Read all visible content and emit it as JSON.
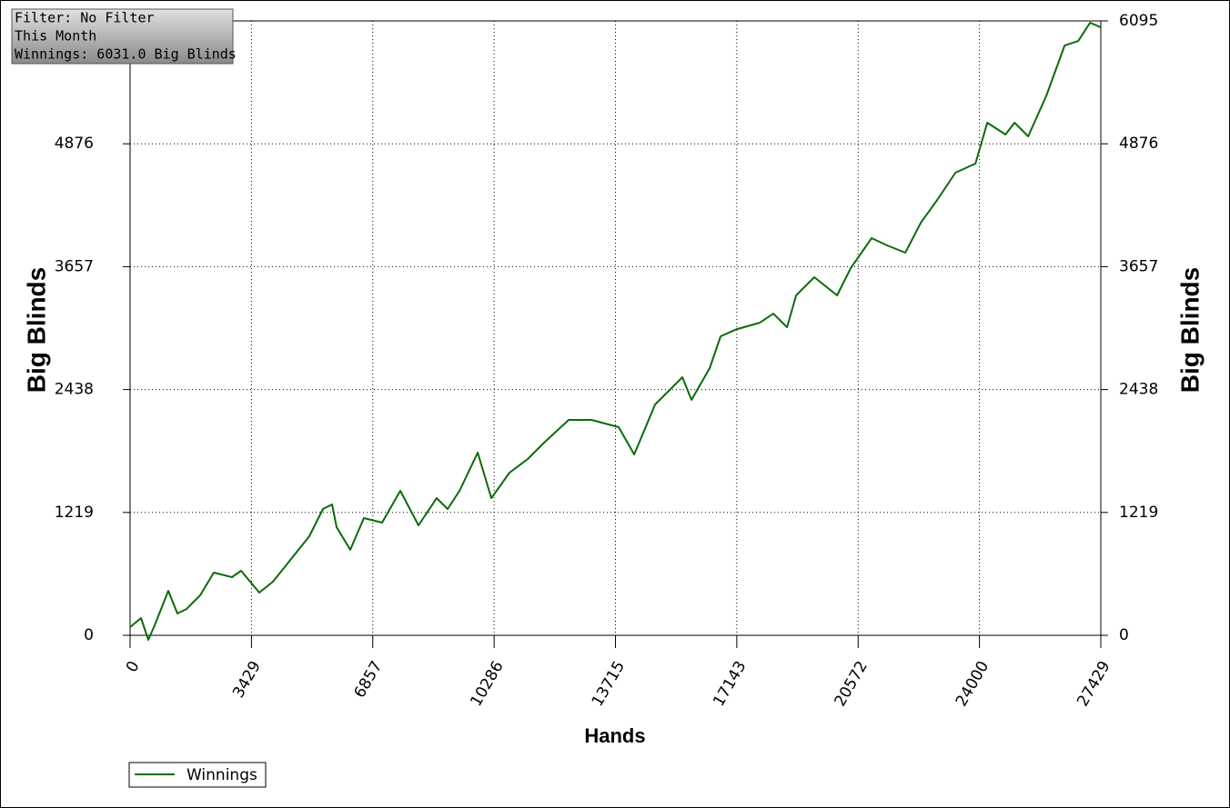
{
  "chart_data": {
    "type": "line",
    "annotations": [
      "Filter: No Filter",
      "This Month",
      "Winnings: 6031.0 Big Blinds"
    ],
    "x_label": "Hands",
    "y_label": "Big Blinds",
    "x": [
      0,
      309,
      514,
      694,
      1080,
      1337,
      1594,
      1980,
      2365,
      2879,
      3136,
      3651,
      4036,
      4551,
      5065,
      5451,
      5708,
      5836,
      6222,
      6607,
      7122,
      7636,
      8150,
      8664,
      8973,
      9308,
      9822,
      10209,
      10723,
      11237,
      11750,
      12393,
      13035,
      13806,
      14243,
      14835,
      15606,
      15863,
      16377,
      16686,
      17149,
      17792,
      18178,
      18563,
      18820,
      19334,
      19977,
      20363,
      20954,
      21391,
      21905,
      22343,
      22806,
      23320,
      23886,
      24220,
      24734,
      24991,
      25377,
      25891,
      26405,
      26791,
      27125,
      27429
    ],
    "series": [
      {
        "name": "Winnings",
        "color": "#0b6b0b",
        "values": [
          81,
          171,
          -45,
          99,
          442,
          216,
          261,
          397,
          622,
          577,
          640,
          424,
          532,
          757,
          983,
          1253,
          1298,
          1073,
          848,
          1163,
          1118,
          1434,
          1091,
          1361,
          1253,
          1434,
          1812,
          1361,
          1614,
          1749,
          1929,
          2137,
          2137,
          2065,
          1794,
          2290,
          2560,
          2335,
          2651,
          2966,
          3038,
          3101,
          3191,
          3056,
          3372,
          3552,
          3372,
          3642,
          3940,
          3868,
          3796,
          4093,
          4319,
          4589,
          4679,
          5085,
          4968,
          5085,
          4950,
          5355,
          5851,
          5896,
          6077,
          6031
        ]
      }
    ],
    "xlim": [
      0,
      27429
    ],
    "xticks": [
      0,
      3429,
      6857,
      10286,
      13715,
      17143,
      20572,
      24000,
      27429
    ],
    "ylim": [
      0,
      6095
    ],
    "yticks": [
      0,
      1219,
      2438,
      3657,
      4876,
      6095
    ],
    "grid": true
  }
}
